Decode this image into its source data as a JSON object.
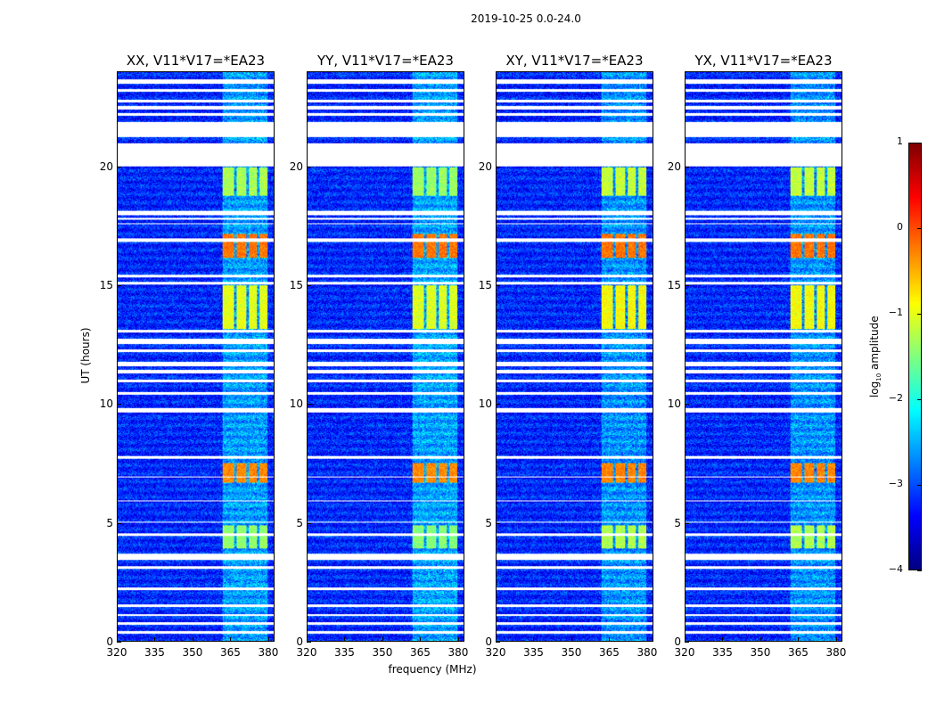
{
  "chart_data": {
    "type": "heatmap",
    "title": "2019-10-25 0.0-24.0",
    "xlabel": "frequency (MHz)",
    "ylabel": "UT (hours)",
    "xlim": [
      320,
      382.5
    ],
    "ylim": [
      0,
      24
    ],
    "xticks": [
      "320",
      "335",
      "350",
      "365",
      "380"
    ],
    "xtick_values": [
      320,
      335,
      350,
      365,
      380
    ],
    "yticks": [
      "0",
      "5",
      "10",
      "15",
      "20"
    ],
    "ytick_values": [
      0,
      5,
      10,
      15,
      20
    ],
    "panels": [
      {
        "title": "XX, V11*V17=*EA23",
        "rfi_level": 1.0
      },
      {
        "title": "YY, V11*V17=*EA23",
        "rfi_level": 1.05
      },
      {
        "title": "XY, V11*V17=*EA23",
        "rfi_level": 0.9
      },
      {
        "title": "YX, V11*V17=*EA23",
        "rfi_level": 0.9
      }
    ],
    "flagged_hours": [
      [
        23.55,
        23.7
      ],
      [
        23.2,
        23.3
      ],
      [
        22.75,
        22.85
      ],
      [
        22.45,
        22.6
      ],
      [
        22.2,
        22.3
      ],
      [
        21.3,
        21.9
      ],
      [
        20.05,
        21.0
      ],
      [
        18.0,
        18.15
      ],
      [
        17.8,
        17.85
      ],
      [
        17.6,
        17.65
      ],
      [
        16.85,
        17.0
      ],
      [
        15.35,
        15.45
      ],
      [
        15.05,
        15.15
      ],
      [
        13.05,
        13.15
      ],
      [
        12.55,
        12.75
      ],
      [
        12.2,
        12.3
      ],
      [
        11.6,
        11.8
      ],
      [
        11.3,
        11.45
      ],
      [
        10.95,
        11.05
      ],
      [
        10.4,
        10.5
      ],
      [
        9.65,
        9.85
      ],
      [
        7.7,
        7.8
      ],
      [
        6.9,
        6.95
      ],
      [
        5.9,
        5.95
      ],
      [
        5.0,
        5.05
      ],
      [
        4.45,
        4.55
      ],
      [
        3.45,
        3.7
      ],
      [
        3.05,
        3.15
      ],
      [
        2.15,
        2.25
      ],
      [
        1.45,
        1.55
      ],
      [
        1.05,
        1.15
      ],
      [
        0.7,
        0.8
      ],
      [
        0.3,
        0.45
      ]
    ],
    "rfi_band_mhz": [
      [
        362,
        366.5
      ],
      [
        367.5,
        371.5
      ],
      [
        372.5,
        375.5
      ],
      [
        376.5,
        380
      ]
    ],
    "bright_periods": [
      {
        "hours": [
          18.8,
          20.0
        ],
        "log_amp": -1.3
      },
      {
        "hours": [
          16.2,
          17.2
        ],
        "log_amp": -0.2
      },
      {
        "hours": [
          13.2,
          15.0
        ],
        "log_amp": -1.0
      },
      {
        "hours": [
          6.7,
          7.5
        ],
        "log_amp": -0.3
      },
      {
        "hours": [
          3.9,
          4.9
        ],
        "log_amp": -1.4
      }
    ],
    "background_log_amp": -3.2,
    "colorbar": {
      "label": "log",
      "label_sub": "10",
      "label_rest": " amplitude",
      "colormap": "jet",
      "range": [
        -4,
        1
      ],
      "ticks": [
        "1",
        "0",
        "−1",
        "−2",
        "−3",
        "−4"
      ],
      "tick_values": [
        1,
        0,
        -1,
        -2,
        -3,
        -4
      ]
    }
  }
}
